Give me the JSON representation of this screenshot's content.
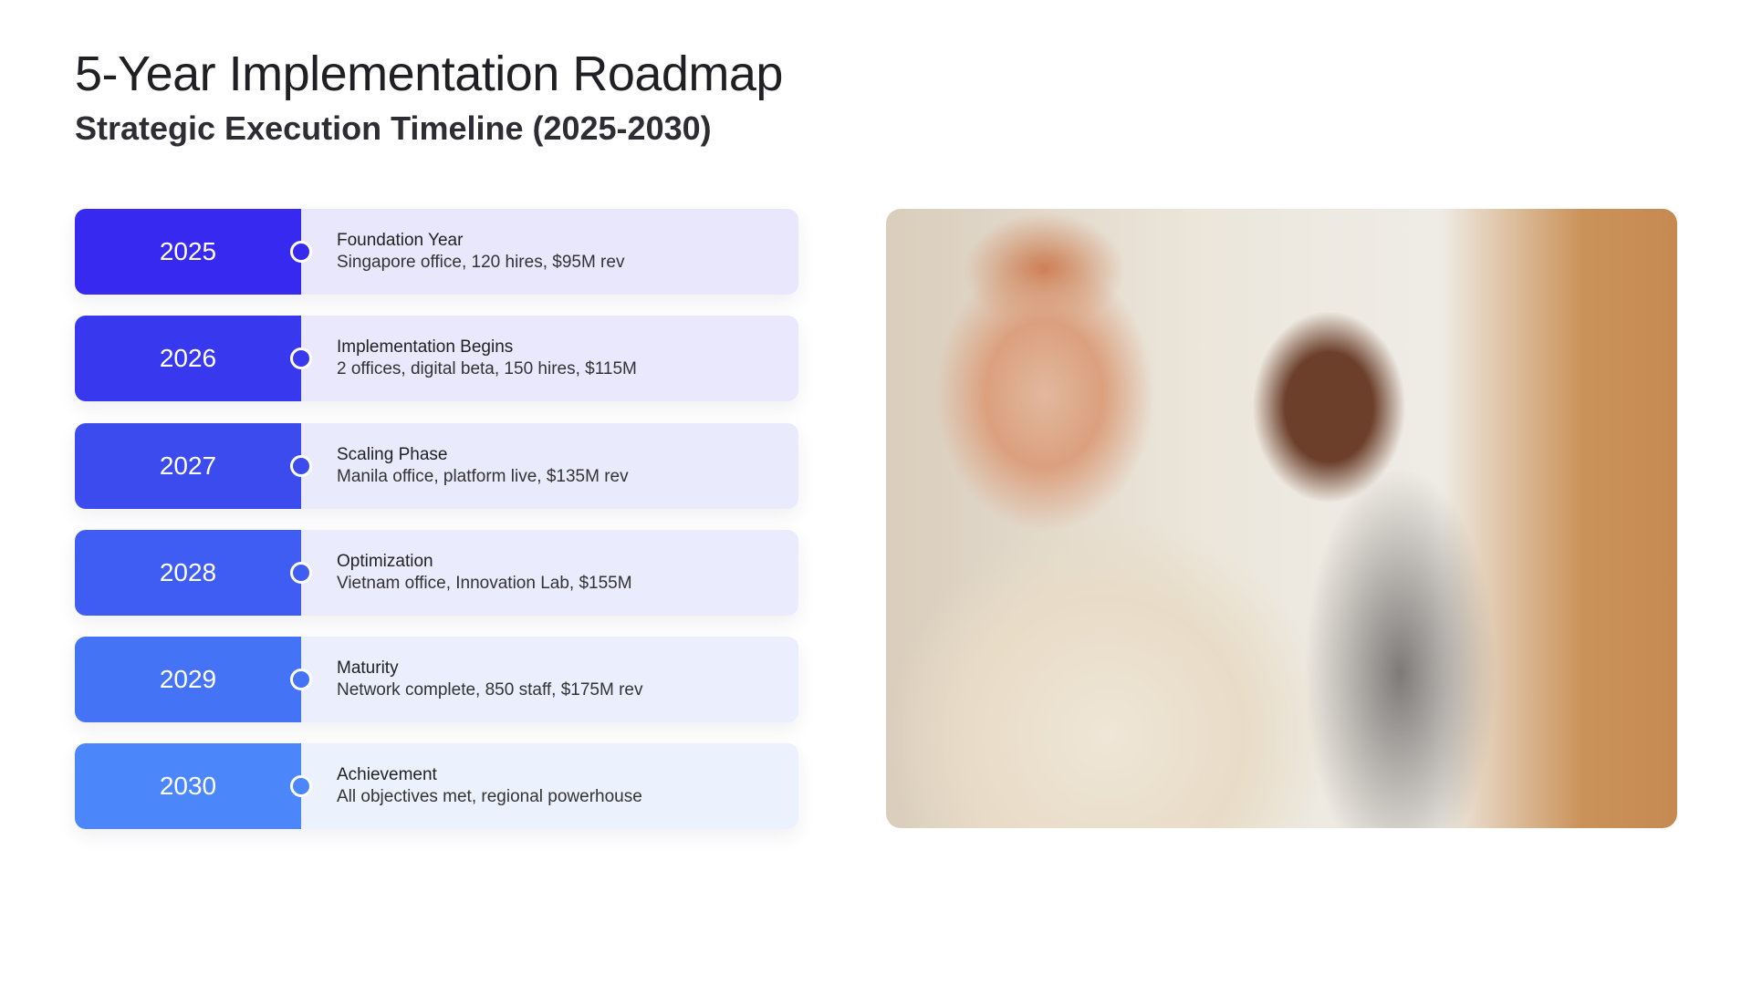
{
  "title": "5-Year Implementation Roadmap",
  "subtitle": "Strategic Execution Timeline (2025-2030)",
  "milestones": [
    {
      "year": "2025",
      "title": "Foundation Year",
      "desc": "Singapore office, 120 hires, $95M rev",
      "color": "#3729F0",
      "bg": "#E9E7FC"
    },
    {
      "year": "2026",
      "title": "Implementation Begins",
      "desc": "2 offices, digital beta, 150 hires, $115M",
      "color": "#3838EF",
      "bg": "#E9E8FC"
    },
    {
      "year": "2027",
      "title": "Scaling Phase",
      "desc": "Manila office, platform live, $135M rev",
      "color": "#3B4BEE",
      "bg": "#E9EAFC"
    },
    {
      "year": "2028",
      "title": "Optimization",
      "desc": "Vietnam office, Innovation Lab, $155M",
      "color": "#3F5DF2",
      "bg": "#EAEBFC"
    },
    {
      "year": "2029",
      "title": "Maturity",
      "desc": "Network complete, 850 staff, $175M rev",
      "color": "#4573F6",
      "bg": "#EAEEFD"
    },
    {
      "year": "2030",
      "title": "Achievement",
      "desc": "All objectives met, regional powerhouse",
      "color": "#4B87FA",
      "bg": "#EBF1FD"
    }
  ]
}
